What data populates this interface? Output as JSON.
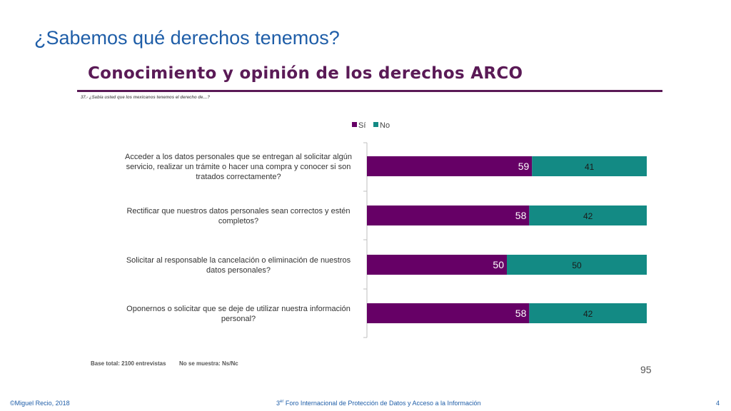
{
  "slide": {
    "title": "¿Sabemos qué derechos tenemos?",
    "page_inner": "95",
    "page_number": "4"
  },
  "footer": {
    "copyright": "©Miguel Recio, 2018",
    "event_prefix": "3",
    "event_sup": "er",
    "event_rest": " Foro Internacional de Protección de Datos y Acceso a la Información"
  },
  "notes": {
    "base": "Base total: 2100 entrevistas",
    "no_answer": "No se muestra: Ns/Nc"
  },
  "chart_data": {
    "type": "bar",
    "orientation": "horizontal",
    "stacked": true,
    "title": "Conocimiento y opinión de los derechos ARCO",
    "question": "37.- ¿Sabía usted que los mexicanos tenemos el derecho de…?",
    "categories": [
      [
        "Acceder a los datos personales que se entregan al solicitar algún",
        "servicio, realizar un trámite o hacer una compra y conocer si son",
        "tratados correctamente?"
      ],
      [
        "Rectificar que nuestros datos personales sean correctos y estén",
        "completos?"
      ],
      [
        "Solicitar al responsable la cancelación o eliminación de nuestros",
        "datos personales?"
      ],
      [
        "Oponernos o solicitar que se deje de utilizar nuestra información",
        "personal?"
      ]
    ],
    "series": [
      {
        "name": "Sí",
        "color": "#660066",
        "values": [
          59,
          58,
          50,
          58
        ]
      },
      {
        "name": "No",
        "color": "#138a84",
        "values": [
          41,
          42,
          50,
          42
        ]
      }
    ],
    "xlim": [
      0,
      100
    ],
    "legend": "top-center",
    "grid": false
  }
}
